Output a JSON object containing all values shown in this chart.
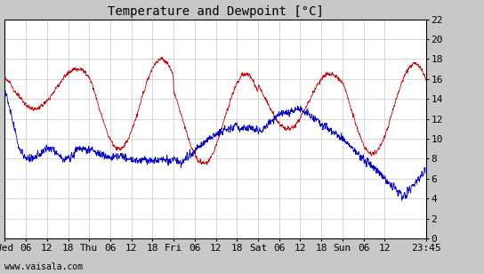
{
  "title": "Temperature and Dewpoint [°C]",
  "xlabel_ticks": [
    "Wed",
    "06",
    "12",
    "18",
    "Thu",
    "06",
    "12",
    "18",
    "Fri",
    "06",
    "12",
    "18",
    "Sat",
    "06",
    "12",
    "18",
    "Sun",
    "06",
    "12",
    "23:45"
  ],
  "xlabel_ticks_positions": [
    0,
    6,
    12,
    18,
    24,
    30,
    36,
    42,
    48,
    54,
    60,
    66,
    72,
    78,
    84,
    90,
    96,
    102,
    108,
    119.75
  ],
  "ylabel_ticks": [
    0,
    2,
    4,
    6,
    8,
    10,
    12,
    14,
    16,
    18,
    20,
    22
  ],
  "ylim": [
    0,
    22
  ],
  "xlim": [
    0,
    119.75
  ],
  "temp_color": "#cc0000",
  "dew_color": "#0000cc",
  "plot_bg_color": "#ffffff",
  "fig_bg_color": "#c8c8c8",
  "grid_color": "#c8c8c8",
  "watermark": "www.vaisala.com",
  "title_fontsize": 10,
  "tick_fontsize": 8,
  "watermark_fontsize": 7,
  "figsize": [
    5.44,
    3.08
  ],
  "dpi": 100
}
